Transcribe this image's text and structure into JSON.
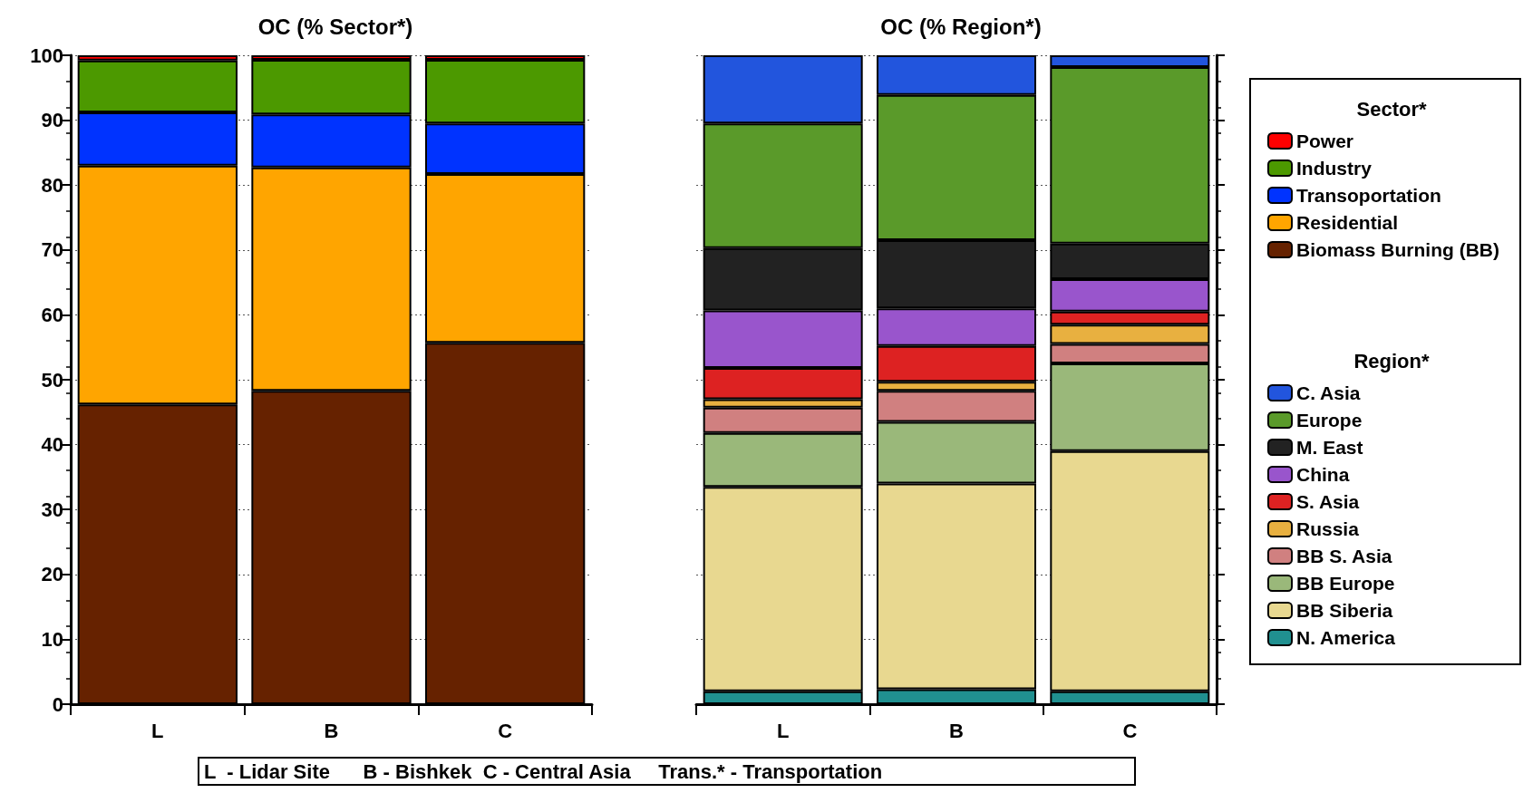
{
  "chart_data": [
    {
      "type": "bar",
      "title": "OC (% Sector*)",
      "categories": [
        "L",
        "B",
        "C"
      ],
      "stacked": true,
      "ylim": [
        0,
        100
      ],
      "yticks": [
        0,
        10,
        20,
        30,
        40,
        50,
        60,
        70,
        80,
        90,
        100
      ],
      "grid": "y",
      "legend": "right",
      "legend_title": "Sector*",
      "annotations": [
        "L  - Lidar Site      B - Bishkek  C - Central Asia     Trans.* - Transportation"
      ],
      "series": [
        {
          "name": "Biomass Burning (BB)",
          "color": "#662200",
          "values": [
            46.2,
            48.3,
            55.7
          ]
        },
        {
          "name": "Residential",
          "color": "#ffa500",
          "values": [
            36.8,
            34.4,
            26.0
          ]
        },
        {
          "name": "Transoportation",
          "color": "#0033ff",
          "values": [
            8.2,
            8.2,
            7.8
          ]
        },
        {
          "name": "Industry",
          "color": "#4c9900",
          "values": [
            8.0,
            8.4,
            9.8
          ]
        },
        {
          "name": "Power",
          "color": "#ff0000",
          "values": [
            0.8,
            0.7,
            0.7
          ]
        }
      ]
    },
    {
      "type": "bar",
      "title": "OC (% Region*)",
      "categories": [
        "L",
        "B",
        "C"
      ],
      "stacked": true,
      "ylim": [
        0,
        100
      ],
      "yticks": [
        0,
        10,
        20,
        30,
        40,
        50,
        60,
        70,
        80,
        90,
        100
      ],
      "grid": "y",
      "legend": "right",
      "legend_title": "Region*",
      "tick_labels": "x",
      "series": [
        {
          "name": "N. America",
          "color": "#209090",
          "values": [
            2.0,
            2.3,
            2.0
          ]
        },
        {
          "name": "BB Siberia",
          "color": "#e8d890",
          "values": [
            31.5,
            31.7,
            37.0
          ]
        },
        {
          "name": "BB Europe",
          "color": "#9ab87a",
          "values": [
            8.3,
            9.5,
            13.5
          ]
        },
        {
          "name": "BB S. Asia",
          "color": "#d08080",
          "values": [
            3.9,
            4.8,
            3.0
          ]
        },
        {
          "name": "Russia",
          "color": "#e8b040",
          "values": [
            1.3,
            1.4,
            3.0
          ]
        },
        {
          "name": "S. Asia",
          "color": "#dd2222",
          "values": [
            4.8,
            5.5,
            2.0
          ]
        },
        {
          "name": "China",
          "color": "#9955cc",
          "values": [
            8.9,
            5.8,
            5.0
          ]
        },
        {
          "name": "M. East",
          "color": "#222222",
          "values": [
            9.6,
            10.5,
            5.5
          ]
        },
        {
          "name": "Europe",
          "color": "#5a9a2a",
          "values": [
            19.2,
            22.4,
            27.2
          ]
        },
        {
          "name": "C. Asia",
          "color": "#2255dd",
          "values": [
            10.5,
            6.1,
            1.8
          ]
        }
      ]
    }
  ]
}
